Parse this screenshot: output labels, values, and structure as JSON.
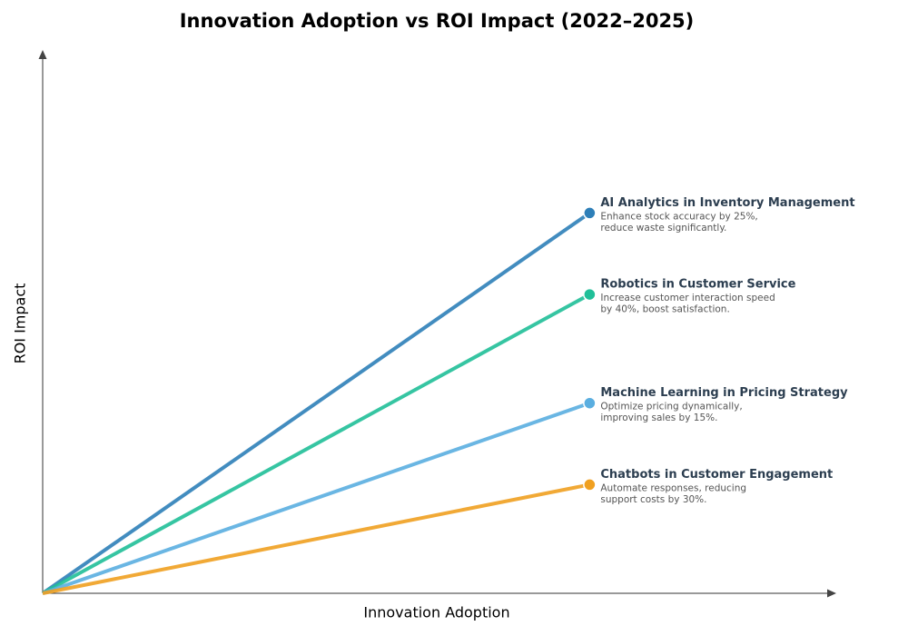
{
  "chart_data": {
    "type": "line",
    "title": "Innovation Adoption vs ROI Impact (2022–2025)",
    "x_label": "Innovation Adoption",
    "y_label": "ROI Impact",
    "xlim": [
      0,
      100
    ],
    "ylim": [
      0,
      100
    ],
    "series": [
      {
        "name": "AI Analytics in Inventory Management",
        "color": "#2e7fb8",
        "x": [
          0,
          69
        ],
        "values": [
          0,
          70
        ],
        "description": [
          "Enhance stock accuracy by 25%,",
          "reduce waste significantly."
        ]
      },
      {
        "name": "Robotics in Customer Service",
        "color": "#20bf98",
        "x": [
          0,
          69
        ],
        "values": [
          0,
          55
        ],
        "description": [
          "Increase customer interaction speed",
          "by 40%, boost satisfaction."
        ]
      },
      {
        "name": "Machine Learning in Pricing Strategy",
        "color": "#5aaee0",
        "x": [
          0,
          69
        ],
        "values": [
          0,
          35
        ],
        "description": [
          "Optimize pricing dynamically,",
          "improving sales by 15%."
        ]
      },
      {
        "name": "Chatbots in Customer Engagement",
        "color": "#f0a020",
        "x": [
          0,
          69
        ],
        "values": [
          0,
          20
        ],
        "description": [
          "Automate responses, reducing",
          "support costs by 30%."
        ]
      }
    ]
  }
}
